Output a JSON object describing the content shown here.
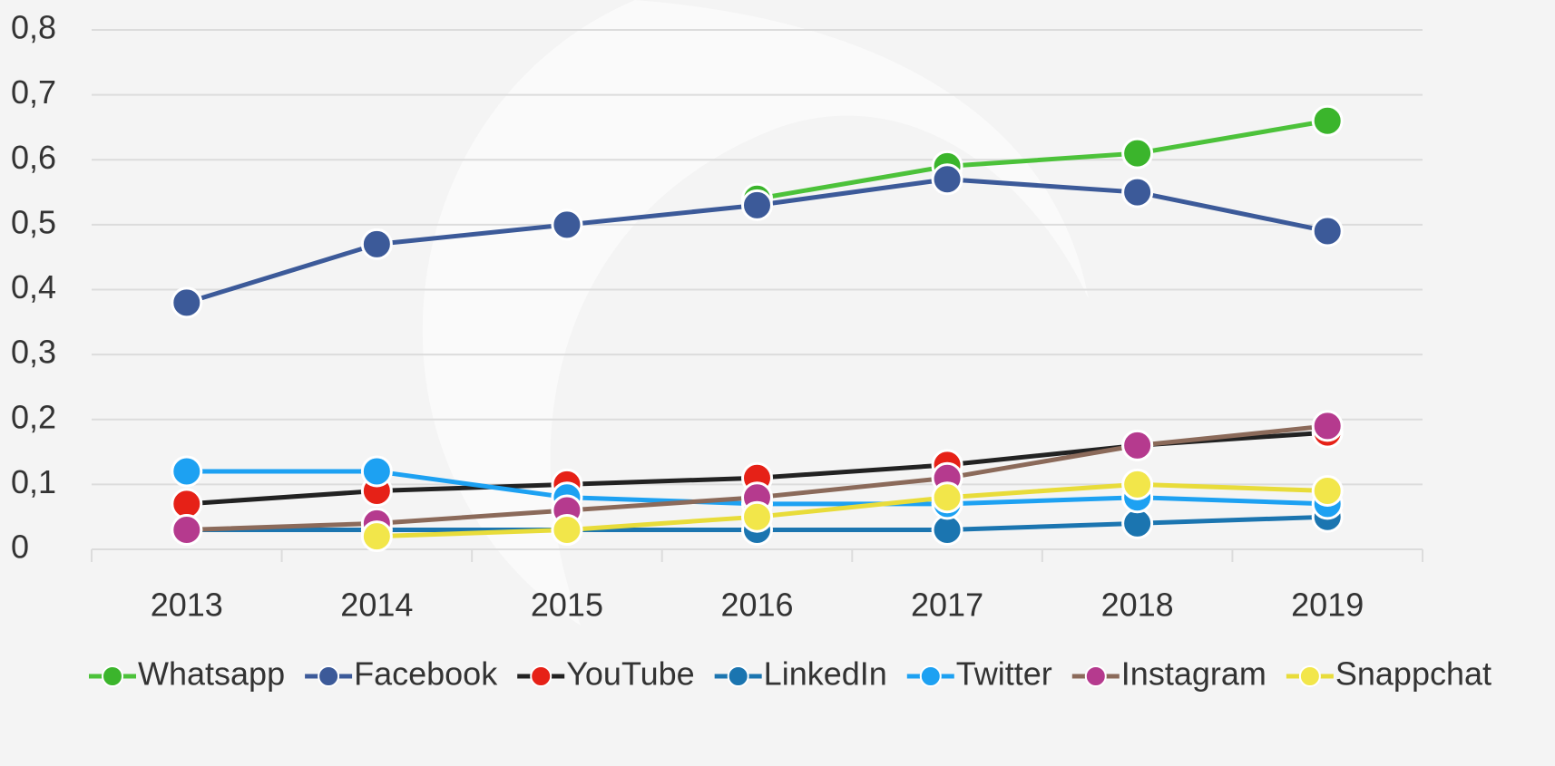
{
  "chart_data": {
    "type": "line",
    "categories": [
      "2013",
      "2014",
      "2015",
      "2016",
      "2017",
      "2018",
      "2019"
    ],
    "ylim": [
      0,
      0.8
    ],
    "yticks": [
      0,
      {
        "value": 0.1,
        "label": "0,1"
      },
      {
        "value": 0.2,
        "label": "0,2"
      },
      {
        "value": 0.3,
        "label": "0,3"
      },
      {
        "value": 0.4,
        "label": "0,4"
      },
      {
        "value": 0.5,
        "label": "0,5"
      },
      {
        "value": 0.6,
        "label": "0,6"
      },
      {
        "value": 0.7,
        "label": "0,7"
      },
      {
        "value": 0.8,
        "label": "0,8"
      }
    ],
    "grid": true,
    "legend": "bottom",
    "series": [
      {
        "name": "Whatsapp",
        "color": "#4cc23a",
        "marker_color": "#3bb52c",
        "values": [
          null,
          null,
          null,
          0.54,
          0.59,
          0.61,
          0.66
        ]
      },
      {
        "name": "Facebook",
        "color": "#3c5a99",
        "marker_color": "#3c5a99",
        "values": [
          0.38,
          0.47,
          0.5,
          0.53,
          0.57,
          0.55,
          0.49
        ]
      },
      {
        "name": "YouTube",
        "color": "#222222",
        "marker_color": "#e62117",
        "values": [
          0.07,
          0.09,
          0.1,
          0.11,
          0.13,
          0.16,
          0.18
        ]
      },
      {
        "name": "LinkedIn",
        "color": "#1b75b0",
        "marker_color": "#1b75b0",
        "values": [
          0.03,
          0.03,
          0.03,
          0.03,
          0.03,
          0.04,
          0.05
        ]
      },
      {
        "name": "Twitter",
        "color": "#1da1f2",
        "marker_color": "#1da1f2",
        "values": [
          0.12,
          0.12,
          0.08,
          0.07,
          0.07,
          0.08,
          0.07
        ]
      },
      {
        "name": "Instagram",
        "color": "#8b6a5a",
        "marker_color": "#b53a8e",
        "values": [
          0.03,
          0.04,
          0.06,
          0.08,
          0.11,
          0.16,
          0.19
        ]
      },
      {
        "name": "Snappchat",
        "color": "#e8dc3a",
        "marker_color": "#f2e64a",
        "values": [
          null,
          0.02,
          0.03,
          0.05,
          0.08,
          0.1,
          0.09
        ]
      }
    ]
  }
}
